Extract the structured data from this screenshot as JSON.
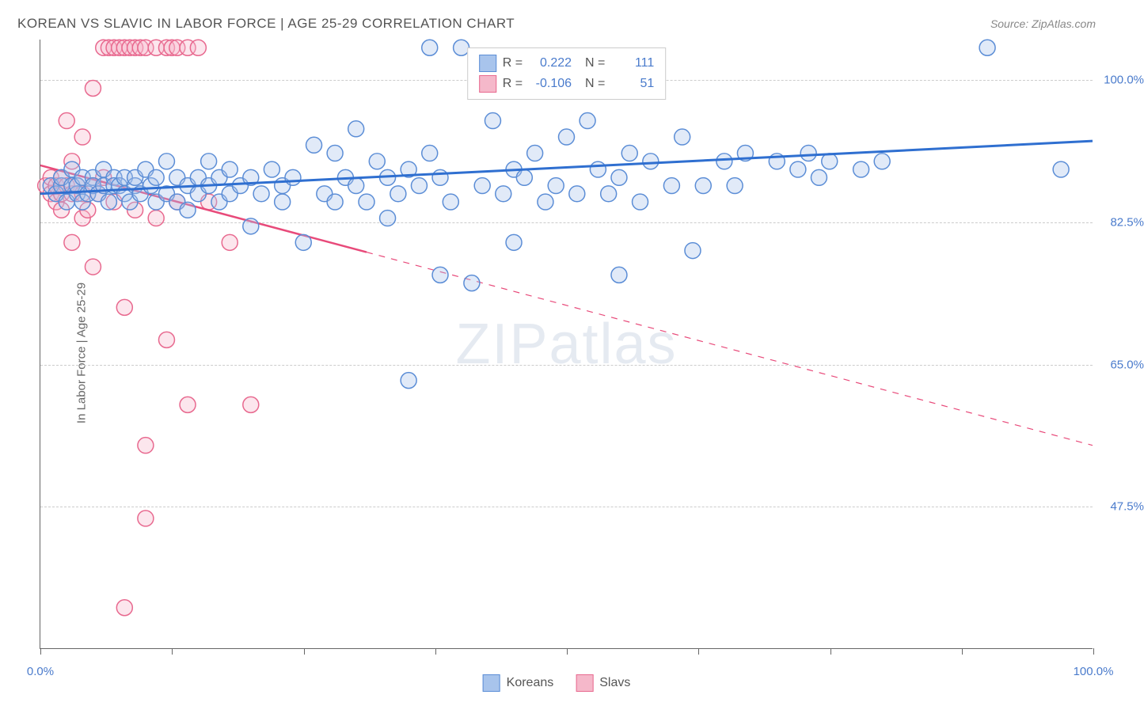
{
  "title": "KOREAN VS SLAVIC IN LABOR FORCE | AGE 25-29 CORRELATION CHART",
  "source": "Source: ZipAtlas.com",
  "watermark": "ZIPatlas",
  "ylabel": "In Labor Force | Age 25-29",
  "chart": {
    "type": "scatter",
    "xlim": [
      0,
      100
    ],
    "ylim": [
      30,
      105
    ],
    "xticks": [
      0,
      12.5,
      25,
      37.5,
      50,
      62.5,
      75,
      87.5,
      100
    ],
    "xtick_labels": {
      "0": "0.0%",
      "100": "100.0%"
    },
    "yticks": [
      47.5,
      65.0,
      82.5,
      100.0
    ],
    "ytick_labels": [
      "47.5%",
      "65.0%",
      "82.5%",
      "100.0%"
    ],
    "grid_color": "#cccccc",
    "background_color": "#ffffff",
    "axis_color": "#666666",
    "label_color": "#4a7bcc",
    "marker_radius": 10,
    "marker_stroke_width": 1.5,
    "fill_opacity": 0.35
  },
  "series": {
    "koreans": {
      "label": "Koreans",
      "fill": "#a8c4ec",
      "stroke": "#5b8dd6",
      "line_color": "#2f6fd0",
      "line_width": 3,
      "R": "0.222",
      "N": "111",
      "trend": {
        "x1": 0,
        "y1": 86.0,
        "x2": 100,
        "y2": 92.5,
        "solid_until_x": 100
      },
      "points": [
        [
          1,
          87
        ],
        [
          1.5,
          86
        ],
        [
          2,
          87
        ],
        [
          2,
          88
        ],
        [
          2.5,
          85
        ],
        [
          3,
          87
        ],
        [
          3,
          89
        ],
        [
          3.5,
          86
        ],
        [
          3.5,
          87
        ],
        [
          4,
          88
        ],
        [
          4,
          85
        ],
        [
          4.5,
          86
        ],
        [
          5,
          88
        ],
        [
          5,
          87
        ],
        [
          5.5,
          86
        ],
        [
          6,
          87
        ],
        [
          6,
          89
        ],
        [
          6.5,
          85
        ],
        [
          7,
          88
        ],
        [
          7,
          87
        ],
        [
          7.5,
          87
        ],
        [
          8,
          88
        ],
        [
          8,
          86
        ],
        [
          8.5,
          85
        ],
        [
          9,
          87
        ],
        [
          9,
          88
        ],
        [
          9.5,
          86
        ],
        [
          10,
          89
        ],
        [
          10.5,
          87
        ],
        [
          11,
          88
        ],
        [
          11,
          85
        ],
        [
          12,
          90
        ],
        [
          12,
          86
        ],
        [
          13,
          85
        ],
        [
          13,
          88
        ],
        [
          14,
          87
        ],
        [
          14,
          84
        ],
        [
          15,
          86
        ],
        [
          15,
          88
        ],
        [
          16,
          87
        ],
        [
          16,
          90
        ],
        [
          17,
          85
        ],
        [
          17,
          88
        ],
        [
          18,
          86
        ],
        [
          18,
          89
        ],
        [
          19,
          87
        ],
        [
          20,
          88
        ],
        [
          20,
          82
        ],
        [
          21,
          86
        ],
        [
          22,
          89
        ],
        [
          23,
          85
        ],
        [
          23,
          87
        ],
        [
          24,
          88
        ],
        [
          25,
          80
        ],
        [
          26,
          92
        ],
        [
          27,
          86
        ],
        [
          28,
          91
        ],
        [
          28,
          85
        ],
        [
          29,
          88
        ],
        [
          30,
          94
        ],
        [
          30,
          87
        ],
        [
          31,
          85
        ],
        [
          32,
          90
        ],
        [
          33,
          83
        ],
        [
          33,
          88
        ],
        [
          34,
          86
        ],
        [
          35,
          89
        ],
        [
          35,
          63
        ],
        [
          36,
          87
        ],
        [
          37,
          91
        ],
        [
          37,
          104
        ],
        [
          38,
          76
        ],
        [
          38,
          88
        ],
        [
          39,
          85
        ],
        [
          40,
          104
        ],
        [
          41,
          75
        ],
        [
          42,
          87
        ],
        [
          43,
          95
        ],
        [
          44,
          86
        ],
        [
          45,
          89
        ],
        [
          45,
          80
        ],
        [
          46,
          88
        ],
        [
          47,
          91
        ],
        [
          48,
          85
        ],
        [
          49,
          87
        ],
        [
          50,
          93
        ],
        [
          51,
          86
        ],
        [
          52,
          95
        ],
        [
          53,
          89
        ],
        [
          54,
          86
        ],
        [
          55,
          76
        ],
        [
          55,
          88
        ],
        [
          56,
          91
        ],
        [
          57,
          85
        ],
        [
          58,
          90
        ],
        [
          60,
          87
        ],
        [
          61,
          93
        ],
        [
          62,
          79
        ],
        [
          63,
          87
        ],
        [
          65,
          90
        ],
        [
          66,
          87
        ],
        [
          67,
          91
        ],
        [
          70,
          90
        ],
        [
          72,
          89
        ],
        [
          73,
          91
        ],
        [
          74,
          88
        ],
        [
          75,
          90
        ],
        [
          78,
          89
        ],
        [
          80,
          90
        ],
        [
          90,
          104
        ],
        [
          97,
          89
        ]
      ]
    },
    "slavs": {
      "label": "Slavs",
      "fill": "#f5b8ca",
      "stroke": "#e8698f",
      "line_color": "#e84a7a",
      "line_width": 2.5,
      "R": "-0.106",
      "N": "51",
      "trend": {
        "x1": 0,
        "y1": 89.5,
        "x2": 100,
        "y2": 55.0,
        "solid_until_x": 31
      },
      "points": [
        [
          0.5,
          87
        ],
        [
          1,
          88
        ],
        [
          1,
          86
        ],
        [
          1.5,
          85
        ],
        [
          1.5,
          87
        ],
        [
          2,
          88
        ],
        [
          2,
          86
        ],
        [
          2,
          84
        ],
        [
          2.5,
          87
        ],
        [
          2.5,
          95
        ],
        [
          3,
          86
        ],
        [
          3,
          90
        ],
        [
          3,
          80
        ],
        [
          3.5,
          87
        ],
        [
          4,
          86
        ],
        [
          4,
          93
        ],
        [
          4,
          83
        ],
        [
          4.5,
          84
        ],
        [
          5,
          87
        ],
        [
          5,
          77
        ],
        [
          5,
          99
        ],
        [
          5.5,
          86
        ],
        [
          6,
          88
        ],
        [
          6,
          104
        ],
        [
          6.5,
          104
        ],
        [
          7,
          104
        ],
        [
          7,
          85
        ],
        [
          7.5,
          104
        ],
        [
          8,
          104
        ],
        [
          8,
          72
        ],
        [
          8.5,
          104
        ],
        [
          9,
          104
        ],
        [
          9,
          84
        ],
        [
          9.5,
          104
        ],
        [
          10,
          104
        ],
        [
          10,
          55
        ],
        [
          10,
          46
        ],
        [
          11,
          104
        ],
        [
          11,
          83
        ],
        [
          12,
          104
        ],
        [
          12,
          68
        ],
        [
          12.5,
          104
        ],
        [
          13,
          104
        ],
        [
          13,
          85
        ],
        [
          14,
          104
        ],
        [
          14,
          60
        ],
        [
          15,
          104
        ],
        [
          16,
          85
        ],
        [
          18,
          80
        ],
        [
          20,
          60
        ],
        [
          8,
          35
        ]
      ]
    }
  },
  "bottom_legend": [
    {
      "key": "koreans"
    },
    {
      "key": "slavs"
    }
  ]
}
